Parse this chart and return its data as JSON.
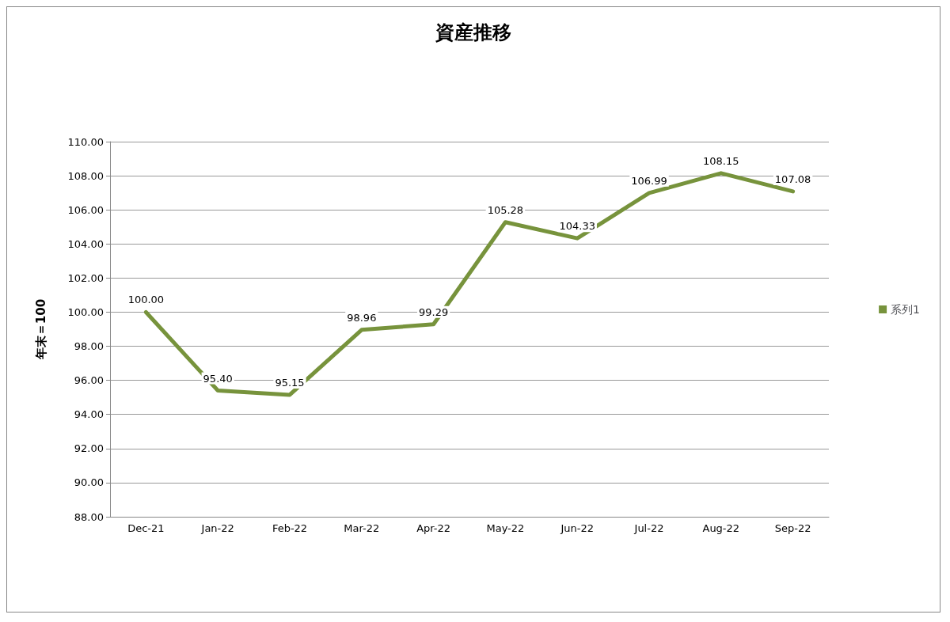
{
  "chart_data": {
    "type": "line",
    "title": "資産推移",
    "ylabel": "年末＝100",
    "categories": [
      "Dec-21",
      "Jan-22",
      "Feb-22",
      "Mar-22",
      "Apr-22",
      "May-22",
      "Jun-22",
      "Jul-22",
      "Aug-22",
      "Sep-22"
    ],
    "series": [
      {
        "name": "系列1",
        "color": "#77933c",
        "values": [
          100.0,
          95.4,
          95.15,
          98.96,
          99.29,
          105.28,
          104.33,
          106.99,
          108.15,
          107.08
        ],
        "value_labels": [
          "100.00",
          "95.40",
          "95.15",
          "98.96",
          "99.29",
          "105.28",
          "104.33",
          "106.99",
          "108.15",
          "107.08"
        ]
      }
    ],
    "ylim": [
      88,
      110
    ],
    "yticks": [
      {
        "value": 88,
        "label": "88.00"
      },
      {
        "value": 90,
        "label": "90.00"
      },
      {
        "value": 92,
        "label": "92.00"
      },
      {
        "value": 94,
        "label": "94.00"
      },
      {
        "value": 96,
        "label": "96.00"
      },
      {
        "value": 98,
        "label": "98.00"
      },
      {
        "value": 100,
        "label": "100.00"
      },
      {
        "value": 102,
        "label": "102.00"
      },
      {
        "value": 104,
        "label": "104.00"
      },
      {
        "value": 106,
        "label": "106.00"
      },
      {
        "value": 108,
        "label": "108.00"
      },
      {
        "value": 110,
        "label": "110.00"
      }
    ],
    "grid": "y",
    "legend": "right",
    "marker": "none",
    "line_style": "solid"
  }
}
